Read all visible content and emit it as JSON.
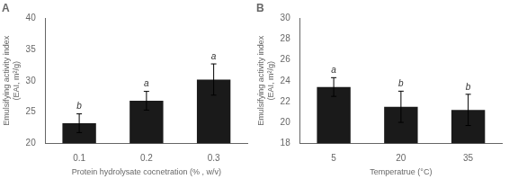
{
  "chart_data": [
    {
      "type": "bar",
      "title": "A",
      "categories": [
        "0.1",
        "0.2",
        "0.3"
      ],
      "values": [
        23.2,
        26.8,
        30.2
      ],
      "errors": [
        1.5,
        1.5,
        2.5
      ],
      "annotations": [
        "b",
        "a",
        "a"
      ],
      "xlabel": "Protein hydrolysate cocnetration (% , w/v)",
      "ylabel": "Emulsifying activity index\n(EAI, m²/g)",
      "color": "#1a1a1a",
      "ylim": [
        20,
        40
      ],
      "yticks": [
        20,
        25,
        30,
        35,
        40
      ],
      "grid": false
    },
    {
      "type": "bar",
      "title": "B",
      "categories": [
        "5",
        "20",
        "35"
      ],
      "values": [
        23.4,
        21.5,
        21.2
      ],
      "errors": [
        0.9,
        1.5,
        1.5
      ],
      "annotations": [
        "a",
        "b",
        "b"
      ],
      "xlabel": "Temperatrue (°C)",
      "ylabel": "Emulsifying activity index\n(EAI, m²/g)",
      "color": "#1a1a1a",
      "ylim": [
        18,
        30
      ],
      "yticks": [
        18,
        20,
        22,
        24,
        26,
        28,
        30
      ],
      "grid": false
    }
  ]
}
